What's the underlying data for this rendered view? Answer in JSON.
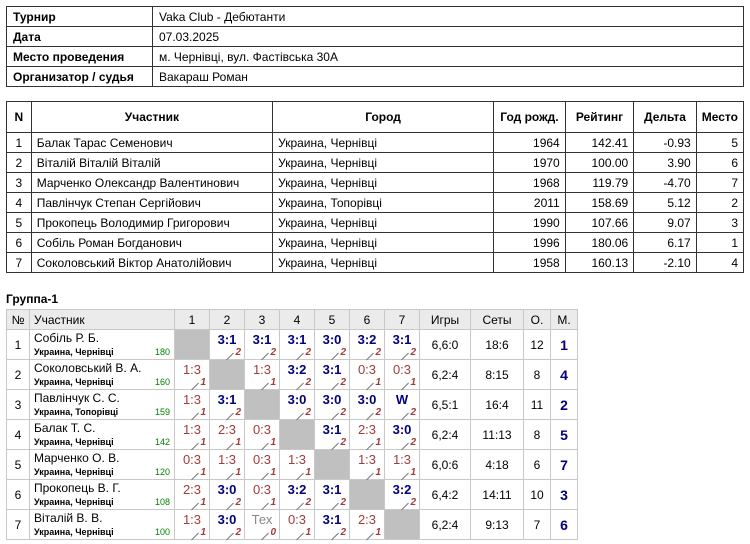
{
  "info": [
    {
      "key": "Турнир",
      "value": "Vaka Club - Дебютанти"
    },
    {
      "key": "Дата",
      "value": "07.03.2025"
    },
    {
      "key": "Место проведения",
      "value": "м. Чернівці, вул. Фастівська 30А"
    },
    {
      "key": "Организатор / судья",
      "value": "Вакараш Роман"
    }
  ],
  "participants": {
    "headers": [
      "N",
      "Участник",
      "Город",
      "Год рожд.",
      "Рейтинг",
      "Дельта",
      "Место"
    ],
    "rows": [
      [
        "1",
        "Балак Тарас Семенович",
        "Украина, Чернівці",
        "1964",
        "142.41",
        "-0.93",
        "5"
      ],
      [
        "2",
        "Віталій Віталій Віталій",
        "Украина, Чернівці",
        "1970",
        "100.00",
        "3.90",
        "6"
      ],
      [
        "3",
        "Марченко Олександр Валентинович",
        "Украина, Чернівці",
        "1968",
        "119.79",
        "-4.70",
        "7"
      ],
      [
        "4",
        "Павлінчук Степан Сергійович",
        "Украина, Топорівці",
        "2011",
        "158.69",
        "5.12",
        "2"
      ],
      [
        "5",
        "Прокопець Володимир Григорович",
        "Украина, Чернівці",
        "1990",
        "107.66",
        "9.07",
        "3"
      ],
      [
        "6",
        "Собіль Роман Богданович",
        "Украина, Чернівці",
        "1996",
        "180.06",
        "6.17",
        "1"
      ],
      [
        "7",
        "Соколовський Віктор Анатолійович",
        "Украина, Чернівці",
        "1958",
        "160.13",
        "-2.10",
        "4"
      ]
    ]
  },
  "group": {
    "title": "Группа-1",
    "headers": {
      "num": "№",
      "name": "Участник",
      "cols": [
        "1",
        "2",
        "3",
        "4",
        "5",
        "6",
        "7"
      ],
      "games": "Игры",
      "sets": "Сеты",
      "points": "О.",
      "place": "М."
    },
    "rows": [
      {
        "n": "1",
        "name": "Собіль Р. Б.",
        "city": "Украина, Чернівці",
        "rating": "180",
        "results": [
          null,
          {
            "s": "3:1",
            "p": "2",
            "t": "win"
          },
          {
            "s": "3:1",
            "p": "2",
            "t": "win"
          },
          {
            "s": "3:1",
            "p": "2",
            "t": "win"
          },
          {
            "s": "3:0",
            "p": "2",
            "t": "win"
          },
          {
            "s": "3:2",
            "p": "2",
            "t": "win"
          },
          {
            "s": "3:1",
            "p": "2",
            "t": "win"
          }
        ],
        "games": "6,6:0",
        "sets": "18:6",
        "points": "12",
        "place": "1"
      },
      {
        "n": "2",
        "name": "Соколовський В. А.",
        "city": "Украина, Чернівці",
        "rating": "160",
        "results": [
          {
            "s": "1:3",
            "p": "1",
            "t": "loss"
          },
          null,
          {
            "s": "1:3",
            "p": "1",
            "t": "loss"
          },
          {
            "s": "3:2",
            "p": "2",
            "t": "win"
          },
          {
            "s": "3:1",
            "p": "2",
            "t": "win"
          },
          {
            "s": "0:3",
            "p": "1",
            "t": "loss"
          },
          {
            "s": "0:3",
            "p": "1",
            "t": "loss"
          }
        ],
        "games": "6,2:4",
        "sets": "8:15",
        "points": "8",
        "place": "4"
      },
      {
        "n": "3",
        "name": "Павлінчук С. С.",
        "city": "Украина, Топорівці",
        "rating": "159",
        "results": [
          {
            "s": "1:3",
            "p": "1",
            "t": "loss"
          },
          {
            "s": "3:1",
            "p": "2",
            "t": "win"
          },
          null,
          {
            "s": "3:0",
            "p": "2",
            "t": "win"
          },
          {
            "s": "3:0",
            "p": "2",
            "t": "win"
          },
          {
            "s": "3:0",
            "p": "2",
            "t": "win"
          },
          {
            "s": "W",
            "p": "2",
            "t": "win"
          }
        ],
        "games": "6,5:1",
        "sets": "16:4",
        "points": "11",
        "place": "2"
      },
      {
        "n": "4",
        "name": "Балак Т. С.",
        "city": "Украина, Чернівці",
        "rating": "142",
        "results": [
          {
            "s": "1:3",
            "p": "1",
            "t": "loss"
          },
          {
            "s": "2:3",
            "p": "1",
            "t": "loss"
          },
          {
            "s": "0:3",
            "p": "1",
            "t": "loss"
          },
          null,
          {
            "s": "3:1",
            "p": "2",
            "t": "win"
          },
          {
            "s": "2:3",
            "p": "1",
            "t": "loss"
          },
          {
            "s": "3:0",
            "p": "2",
            "t": "win"
          }
        ],
        "games": "6,2:4",
        "sets": "11:13",
        "points": "8",
        "place": "5"
      },
      {
        "n": "5",
        "name": "Марченко О. В.",
        "city": "Украина, Чернівці",
        "rating": "120",
        "results": [
          {
            "s": "0:3",
            "p": "1",
            "t": "loss"
          },
          {
            "s": "1:3",
            "p": "1",
            "t": "loss"
          },
          {
            "s": "0:3",
            "p": "1",
            "t": "loss"
          },
          {
            "s": "1:3",
            "p": "1",
            "t": "loss"
          },
          null,
          {
            "s": "1:3",
            "p": "1",
            "t": "loss"
          },
          {
            "s": "1:3",
            "p": "1",
            "t": "loss"
          }
        ],
        "games": "6,0:6",
        "sets": "4:18",
        "points": "6",
        "place": "7"
      },
      {
        "n": "6",
        "name": "Прокопець В. Г.",
        "city": "Украина, Чернівці",
        "rating": "108",
        "results": [
          {
            "s": "2:3",
            "p": "1",
            "t": "loss"
          },
          {
            "s": "3:0",
            "p": "2",
            "t": "win"
          },
          {
            "s": "0:3",
            "p": "1",
            "t": "loss"
          },
          {
            "s": "3:2",
            "p": "2",
            "t": "win"
          },
          {
            "s": "3:1",
            "p": "2",
            "t": "win"
          },
          null,
          {
            "s": "3:2",
            "p": "2",
            "t": "win"
          }
        ],
        "games": "6,4:2",
        "sets": "14:11",
        "points": "10",
        "place": "3"
      },
      {
        "n": "7",
        "name": "Віталій В. В.",
        "city": "Украина, Чернівці",
        "rating": "100",
        "results": [
          {
            "s": "1:3",
            "p": "1",
            "t": "loss"
          },
          {
            "s": "3:0",
            "p": "2",
            "t": "win"
          },
          {
            "s": "Тех",
            "p": "0",
            "t": "tech"
          },
          {
            "s": "0:3",
            "p": "1",
            "t": "loss"
          },
          {
            "s": "3:1",
            "p": "2",
            "t": "win"
          },
          {
            "s": "2:3",
            "p": "1",
            "t": "loss"
          },
          null
        ],
        "games": "6,2:4",
        "sets": "9:13",
        "points": "7",
        "place": "6"
      }
    ]
  }
}
